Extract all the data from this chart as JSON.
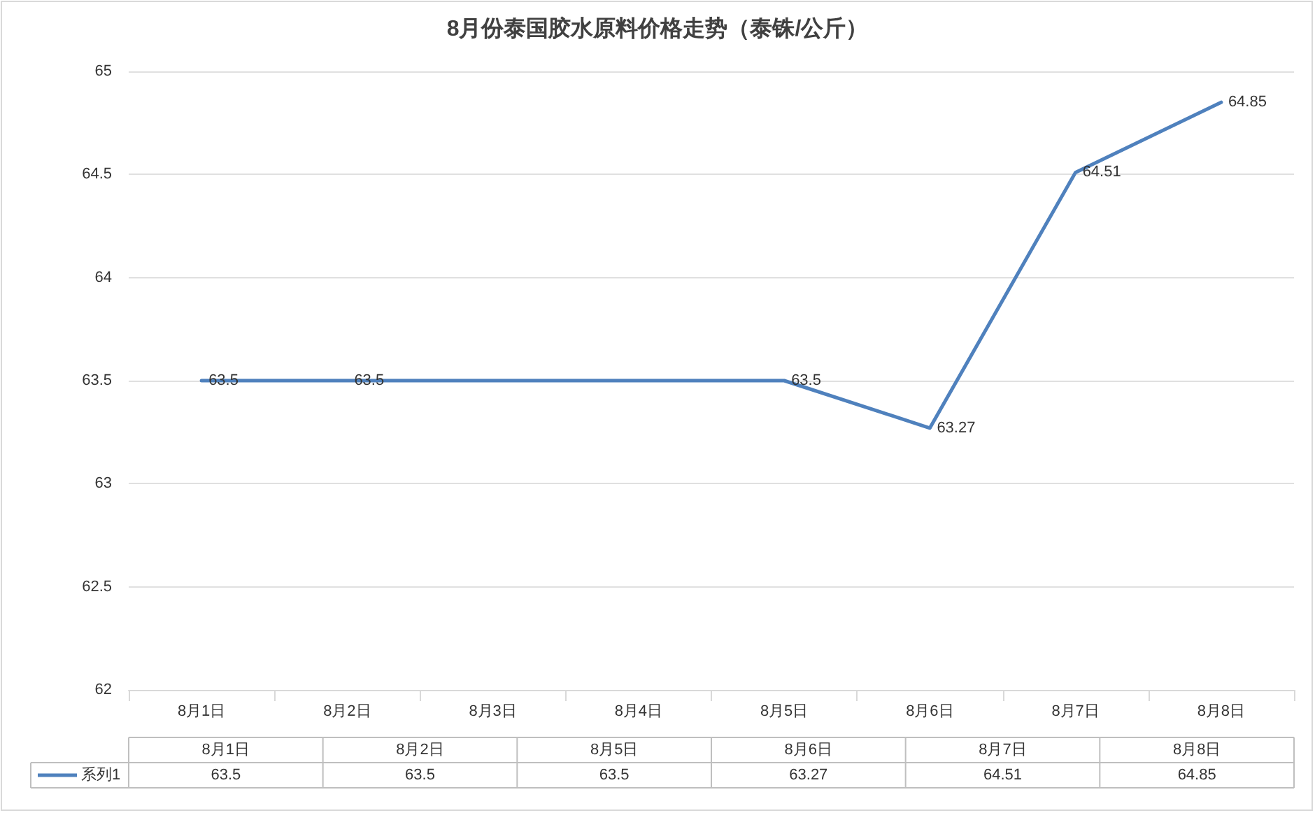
{
  "chart_data": {
    "type": "line",
    "title": "8月份泰国胶水原料价格走势（泰铢/公斤）",
    "categories": [
      "8月1日",
      "8月2日",
      "8月3日",
      "8月4日",
      "8月5日",
      "8月6日",
      "8月7日",
      "8月8日"
    ],
    "series": [
      {
        "name": "系列1",
        "color": "#4f81bd",
        "values": [
          63.5,
          63.5,
          null,
          null,
          63.5,
          63.27,
          64.51,
          64.85
        ],
        "value_labels": [
          "63.5",
          "63.5",
          null,
          null,
          "63.5",
          "63.27",
          "64.51",
          "64.85"
        ]
      }
    ],
    "ylim": [
      62,
      65
    ],
    "yticks": [
      62,
      62.5,
      63,
      63.5,
      64,
      64.5,
      65
    ],
    "grid": "y",
    "marker": "none",
    "line_style": "solid",
    "legend": "bottom left"
  }
}
